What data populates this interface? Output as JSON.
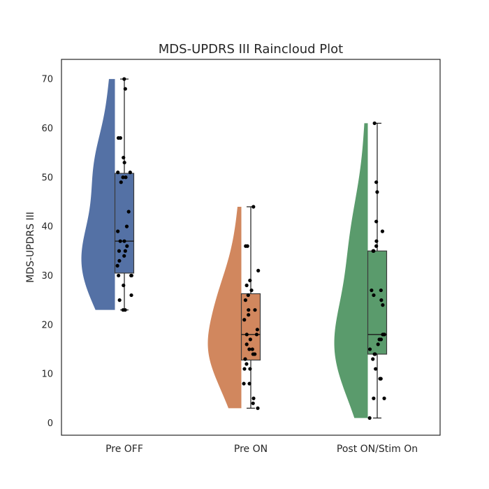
{
  "chart_data": {
    "type": "raincloud",
    "title": "MDS-UPDRS III Raincloud Plot",
    "xlabel": "",
    "ylabel": "MDS-UPDRS III",
    "ylim": [
      -2.5,
      74
    ],
    "yticks": [
      0,
      10,
      20,
      30,
      40,
      50,
      60,
      70
    ],
    "grid": false,
    "categories": [
      "Pre OFF",
      "Pre ON",
      "Post ON/Stim On"
    ],
    "groups": [
      {
        "name": "Pre OFF",
        "color": "#5471a5",
        "box": {
          "whisker_low": 23,
          "q1": 30.5,
          "median": 37,
          "q3": 50.8,
          "whisker_high": 70
        },
        "values": [
          70,
          68,
          58,
          58,
          54,
          53,
          51,
          51,
          50,
          50,
          49,
          43,
          40,
          39,
          37,
          37,
          36,
          35,
          35,
          34,
          33,
          32,
          30,
          30,
          30,
          28,
          26,
          25,
          23,
          23
        ]
      },
      {
        "name": "Pre ON",
        "color": "#d1875e",
        "box": {
          "whisker_low": 3,
          "q1": 12.8,
          "median": 18,
          "q3": 26.3,
          "whisker_high": 44
        },
        "values": [
          44,
          36,
          36,
          31,
          29,
          28,
          27,
          26,
          25,
          23,
          23,
          22,
          21,
          19,
          18,
          18,
          17,
          16,
          15,
          15,
          14,
          14,
          13,
          12,
          11,
          11,
          8,
          8,
          5,
          4,
          3
        ]
      },
      {
        "name": "Post ON/Stim On",
        "color": "#5a9b6c",
        "box": {
          "whisker_low": 1,
          "q1": 14,
          "median": 18,
          "q3": 35,
          "whisker_high": 61
        },
        "values": [
          61,
          49,
          47,
          41,
          39,
          37,
          36,
          35,
          35,
          27,
          27,
          26,
          25,
          24,
          18,
          18,
          18,
          17,
          17,
          16,
          15,
          14,
          14,
          13,
          11,
          9,
          9,
          5,
          5,
          1
        ]
      }
    ]
  }
}
